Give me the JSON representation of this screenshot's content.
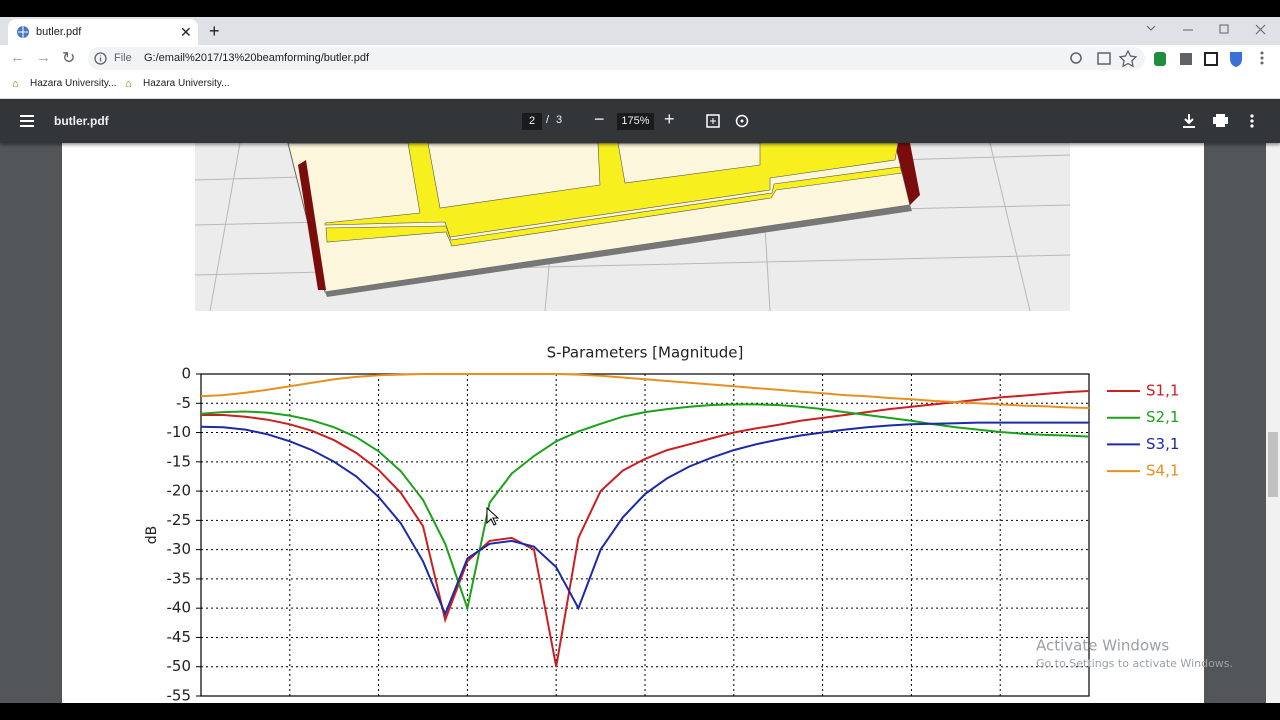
{
  "browser": {
    "tab_title": "butler.pdf",
    "url_scheme": "File",
    "url": "G:/email%2017/13%20beamforming/butler.pdf",
    "bookmarks": [
      "Hazara University...",
      "Hazara University..."
    ]
  },
  "pdf_toolbar": {
    "filename": "butler.pdf",
    "page": "2",
    "separator": "/",
    "page_total": "3",
    "zoom": "175%"
  },
  "chart_data": {
    "type": "line",
    "title": "S-Parameters [Magnitude]",
    "y_label": "dB",
    "categories": [
      null,
      null,
      null,
      null,
      null,
      null,
      null,
      null,
      null,
      null,
      null,
      null,
      null,
      null,
      null,
      null,
      null,
      null,
      null,
      null,
      null,
      null,
      null,
      null,
      null,
      null,
      null,
      null,
      null,
      null,
      null,
      null,
      null,
      null,
      null,
      null,
      null,
      null,
      null,
      null,
      null
    ],
    "series": [
      {
        "name": "S1,1",
        "color": "#cc1f1f",
        "values": [
          -7,
          -7,
          -7.3,
          -7.8,
          -8.6,
          -9.7,
          -11.3,
          -13.5,
          -16.4,
          -20.3,
          -26,
          -42,
          -32,
          -28.5,
          -28,
          -30,
          -50,
          -28,
          -20,
          -16.5,
          -14.5,
          -13,
          -12,
          -11,
          -10,
          -9.3,
          -8.7,
          -8,
          -7.5,
          -7,
          -6.5,
          -6,
          -5.6,
          -5.2,
          -4.8,
          -4.4,
          -4,
          -3.7,
          -3.4,
          -3.1,
          -2.9
        ]
      },
      {
        "name": "S2,1",
        "color": "#1aa31a",
        "values": [
          -6.8,
          -6.5,
          -6.4,
          -6.6,
          -7.1,
          -7.9,
          -9.1,
          -10.8,
          -13.2,
          -16.6,
          -21.5,
          -29,
          -40,
          -22,
          -17,
          -14,
          -11.5,
          -9.8,
          -8.5,
          -7.3,
          -6.5,
          -6,
          -5.6,
          -5.3,
          -5.2,
          -5.2,
          -5.3,
          -5.6,
          -6,
          -6.5,
          -7,
          -7.5,
          -8,
          -8.6,
          -9.1,
          -9.5,
          -9.9,
          -10.2,
          -10.4,
          -10.5,
          -10.7
        ]
      },
      {
        "name": "S3,1",
        "color": "#1c2aa8",
        "values": [
          -9,
          -9.1,
          -9.5,
          -10.3,
          -11.5,
          -13,
          -15,
          -17.5,
          -21,
          -25.5,
          -32,
          -41,
          -31.5,
          -29,
          -28.5,
          -29.5,
          -33,
          -40,
          -30,
          -24.5,
          -20.5,
          -17.8,
          -15.8,
          -14.3,
          -13,
          -12,
          -11.2,
          -10.5,
          -10,
          -9.5,
          -9.1,
          -8.8,
          -8.6,
          -8.5,
          -8.4,
          -8.3,
          -8.3,
          -8.3,
          -8.3,
          -8.3,
          -8.3
        ]
      },
      {
        "name": "S4,1",
        "color": "#e8901e",
        "values": [
          -3.8,
          -3.6,
          -3.2,
          -2.7,
          -2.1,
          -1.5,
          -0.9,
          -0.5,
          -0.2,
          -0.1,
          0,
          0,
          0,
          0,
          0,
          0,
          0,
          -0.1,
          -0.3,
          -0.6,
          -0.9,
          -1.2,
          -1.5,
          -1.8,
          -2.1,
          -2.4,
          -2.7,
          -3,
          -3.3,
          -3.6,
          -3.8,
          -4.1,
          -4.3,
          -4.6,
          -4.8,
          -5,
          -5.2,
          -5.4,
          -5.5,
          -5.7,
          -5.8
        ]
      }
    ],
    "ylim": [
      -55,
      0
    ],
    "yticks": [
      0,
      -5,
      -10,
      -15,
      -20,
      -25,
      -30,
      -35,
      -40,
      -45,
      -50,
      -55
    ],
    "grid": true,
    "legend": "right"
  },
  "watermark": {
    "title": "Activate Windows",
    "subtitle": "Go to Settings to activate Windows."
  }
}
